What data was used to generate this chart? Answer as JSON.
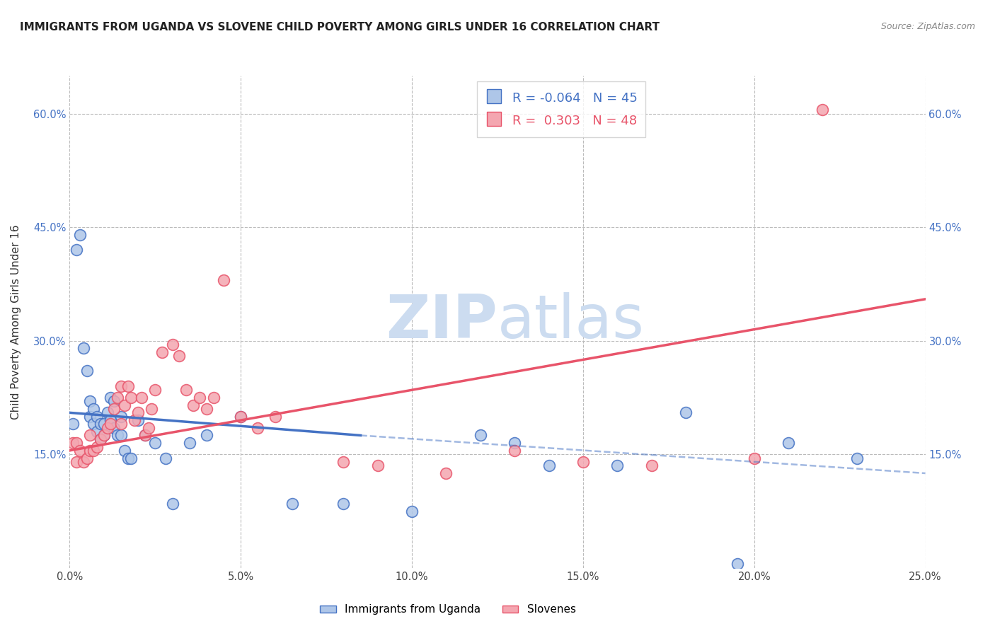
{
  "title": "IMMIGRANTS FROM UGANDA VS SLOVENE CHILD POVERTY AMONG GIRLS UNDER 16 CORRELATION CHART",
  "source": "Source: ZipAtlas.com",
  "ylabel": "Child Poverty Among Girls Under 16",
  "xlim": [
    0.0,
    0.25
  ],
  "ylim": [
    0.0,
    0.65
  ],
  "xtick_labels": [
    "0.0%",
    "5.0%",
    "10.0%",
    "15.0%",
    "20.0%",
    "25.0%"
  ],
  "xtick_vals": [
    0.0,
    0.05,
    0.1,
    0.15,
    0.2,
    0.25
  ],
  "ytick_labels": [
    "15.0%",
    "30.0%",
    "45.0%",
    "60.0%"
  ],
  "ytick_vals": [
    0.15,
    0.3,
    0.45,
    0.6
  ],
  "legend_label1": "Immigrants from Uganda",
  "legend_label2": "Slovenes",
  "R1": -0.064,
  "N1": 45,
  "R2": 0.303,
  "N2": 48,
  "color1": "#aec6e8",
  "color2": "#f4a6b0",
  "trendline1_color": "#4472c4",
  "trendline2_color": "#e8546a",
  "watermark_top": "ZIP",
  "watermark_bot": "atlas",
  "watermark_color": "#ccdcf0",
  "background_color": "#ffffff",
  "grid_color": "#bbbbbb",
  "title_fontsize": 11,
  "scatter1_x": [
    0.001,
    0.002,
    0.003,
    0.004,
    0.005,
    0.006,
    0.006,
    0.007,
    0.007,
    0.008,
    0.008,
    0.009,
    0.009,
    0.01,
    0.01,
    0.011,
    0.012,
    0.012,
    0.013,
    0.013,
    0.014,
    0.015,
    0.015,
    0.016,
    0.017,
    0.018,
    0.02,
    0.022,
    0.025,
    0.028,
    0.03,
    0.035,
    0.04,
    0.05,
    0.065,
    0.08,
    0.1,
    0.12,
    0.13,
    0.14,
    0.16,
    0.18,
    0.195,
    0.21,
    0.23
  ],
  "scatter1_y": [
    0.19,
    0.42,
    0.44,
    0.29,
    0.26,
    0.22,
    0.2,
    0.21,
    0.19,
    0.2,
    0.18,
    0.19,
    0.17,
    0.19,
    0.175,
    0.205,
    0.225,
    0.195,
    0.22,
    0.185,
    0.175,
    0.2,
    0.175,
    0.155,
    0.145,
    0.145,
    0.195,
    0.175,
    0.165,
    0.145,
    0.085,
    0.165,
    0.175,
    0.2,
    0.085,
    0.085,
    0.075,
    0.175,
    0.165,
    0.135,
    0.135,
    0.205,
    0.005,
    0.165,
    0.145
  ],
  "scatter2_x": [
    0.001,
    0.002,
    0.002,
    0.003,
    0.004,
    0.005,
    0.006,
    0.006,
    0.007,
    0.008,
    0.009,
    0.01,
    0.011,
    0.012,
    0.013,
    0.014,
    0.015,
    0.015,
    0.016,
    0.017,
    0.018,
    0.019,
    0.02,
    0.021,
    0.022,
    0.023,
    0.024,
    0.025,
    0.027,
    0.03,
    0.032,
    0.034,
    0.036,
    0.038,
    0.04,
    0.042,
    0.045,
    0.05,
    0.055,
    0.06,
    0.08,
    0.09,
    0.11,
    0.13,
    0.15,
    0.17,
    0.2,
    0.22
  ],
  "scatter2_y": [
    0.165,
    0.165,
    0.14,
    0.155,
    0.14,
    0.145,
    0.175,
    0.155,
    0.155,
    0.16,
    0.17,
    0.175,
    0.185,
    0.19,
    0.21,
    0.225,
    0.24,
    0.19,
    0.215,
    0.24,
    0.225,
    0.195,
    0.205,
    0.225,
    0.175,
    0.185,
    0.21,
    0.235,
    0.285,
    0.295,
    0.28,
    0.235,
    0.215,
    0.225,
    0.21,
    0.225,
    0.38,
    0.2,
    0.185,
    0.2,
    0.14,
    0.135,
    0.125,
    0.155,
    0.14,
    0.135,
    0.145,
    0.605
  ],
  "trendline1_x0": 0.0,
  "trendline1_y0": 0.205,
  "trendline1_x1": 0.085,
  "trendline1_y1": 0.175,
  "trendline1_dash_x0": 0.085,
  "trendline1_dash_y0": 0.175,
  "trendline1_dash_x1": 0.25,
  "trendline1_dash_y1": 0.125,
  "trendline2_x0": 0.0,
  "trendline2_y0": 0.155,
  "trendline2_x1": 0.25,
  "trendline2_y1": 0.355
}
